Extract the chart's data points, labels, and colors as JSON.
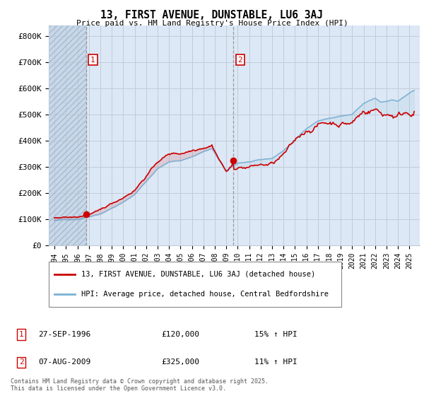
{
  "title": "13, FIRST AVENUE, DUNSTABLE, LU6 3AJ",
  "subtitle": "Price paid vs. HM Land Registry's House Price Index (HPI)",
  "ylim": [
    0,
    840000
  ],
  "yticks": [
    0,
    100000,
    200000,
    300000,
    400000,
    500000,
    600000,
    700000,
    800000
  ],
  "ytick_labels": [
    "£0",
    "£100K",
    "£200K",
    "£300K",
    "£400K",
    "£500K",
    "£600K",
    "£700K",
    "£800K"
  ],
  "price_paid_color": "#cc0000",
  "hpi_color": "#7aafd4",
  "bg_color": "#dce8f5",
  "hatch_bg_color": "#c8d8eb",
  "grid_color": "#c0ccd8",
  "transaction1_x": 1996.74,
  "transaction1_price": 120000,
  "transaction2_x": 2009.6,
  "transaction2_price": 325000,
  "legend_line1": "13, FIRST AVENUE, DUNSTABLE, LU6 3AJ (detached house)",
  "legend_line2": "HPI: Average price, detached house, Central Bedfordshire",
  "table_row1": [
    "1",
    "27-SEP-1996",
    "£120,000",
    "15% ↑ HPI"
  ],
  "table_row2": [
    "2",
    "07-AUG-2009",
    "£325,000",
    "11% ↑ HPI"
  ],
  "footnote": "Contains HM Land Registry data © Crown copyright and database right 2025.\nThis data is licensed under the Open Government Licence v3.0.",
  "xmin": 1993.5,
  "xmax": 2025.9
}
